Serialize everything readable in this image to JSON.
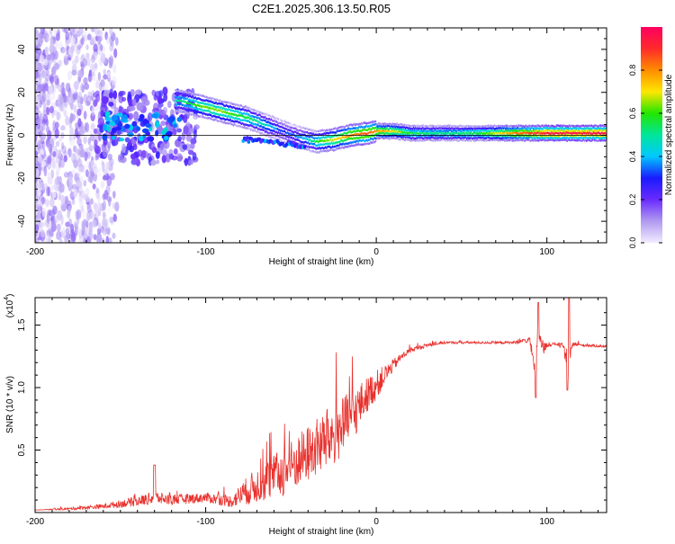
{
  "title": "C2E1.2025.306.13.50.R05",
  "colors": {
    "snr_line": "#e8322e",
    "axis": "#000000",
    "colorbar_stops": [
      "#f2ecff",
      "#b09af0",
      "#6a2bff",
      "#1a1aff",
      "#00c8ff",
      "#00e69a",
      "#22e600",
      "#ffe600",
      "#ff8c00",
      "#ff2a2a",
      "#ff0060"
    ]
  },
  "chart_data": [
    {
      "type": "heatmap",
      "title": "C2E1.2025.306.13.50.R05",
      "xlabel": "Height of straight line (km)",
      "ylabel": "Frequency (Hz)",
      "xlim": [
        -200,
        135
      ],
      "ylim": [
        -50,
        50
      ],
      "x_ticks": [
        -200,
        -100,
        0,
        100
      ],
      "y_ticks": [
        -40,
        -20,
        0,
        20,
        40
      ],
      "colorbar": {
        "label": "Normalized spectral amplitude",
        "range": [
          0,
          1
        ],
        "ticks": [
          0.0,
          0.2,
          0.4,
          0.6,
          0.8
        ]
      },
      "ridge": {
        "x": [
          -115,
          -105,
          -95,
          -85,
          -75,
          -65,
          -55,
          -45,
          -35,
          -25,
          -15,
          -5,
          0,
          10,
          20,
          40,
          60,
          80,
          100,
          120,
          135
        ],
        "y": [
          16,
          14,
          12,
          10,
          8,
          5,
          2,
          -1,
          -3,
          -2,
          0,
          1,
          2,
          2,
          1,
          1,
          1,
          1,
          1,
          1,
          1
        ],
        "amplitude": [
          0.5,
          0.6,
          0.65,
          0.6,
          0.55,
          0.45,
          0.3,
          0.35,
          0.55,
          0.7,
          0.8,
          0.85,
          0.8,
          0.7,
          0.55,
          0.5,
          0.55,
          0.8,
          0.95,
          0.95,
          0.95
        ]
      },
      "zero_line": 0
    },
    {
      "type": "line",
      "xlabel": "Height of straight line (km)",
      "ylabel": "SNR (10 * v/v)",
      "y_multiplier": "(x10",
      "y_multiplier_exp": "4",
      "y_multiplier_close": ")",
      "xlim": [
        -200,
        135
      ],
      "ylim": [
        0,
        1.72
      ],
      "x_ticks": [
        -200,
        -100,
        0,
        100
      ],
      "y_ticks": [
        0.5,
        1.0,
        1.5
      ],
      "series": [
        {
          "x": [
            -200,
            -180,
            -160,
            -140,
            -130,
            -120,
            -100,
            -85,
            -75,
            -65,
            -55,
            -45,
            -35,
            -25,
            -15,
            -10,
            -5,
            0,
            5,
            10,
            15,
            20,
            30,
            40,
            60,
            80,
            90,
            93,
            95,
            98,
            100,
            105,
            110,
            112,
            115,
            120,
            135
          ],
          "y": [
            0.02,
            0.03,
            0.05,
            0.09,
            0.12,
            0.1,
            0.12,
            0.09,
            0.18,
            0.25,
            0.32,
            0.42,
            0.52,
            0.62,
            0.75,
            0.85,
            0.95,
            1.02,
            1.1,
            1.18,
            1.25,
            1.3,
            1.34,
            1.36,
            1.36,
            1.36,
            1.38,
            1.1,
            1.45,
            1.3,
            1.34,
            1.35,
            1.33,
            1.1,
            1.35,
            1.34,
            1.33
          ],
          "noise": [
            0.0,
            0.01,
            0.02,
            0.04,
            0.05,
            0.04,
            0.04,
            0.05,
            0.12,
            0.16,
            0.2,
            0.22,
            0.24,
            0.26,
            0.22,
            0.18,
            0.14,
            0.12,
            0.08,
            0.05,
            0.03,
            0.02,
            0.015,
            0.01,
            0.01,
            0.01,
            0.02,
            0.08,
            0.1,
            0.06,
            0.02,
            0.01,
            0.03,
            0.1,
            0.02,
            0.01,
            0.01
          ]
        }
      ]
    }
  ]
}
